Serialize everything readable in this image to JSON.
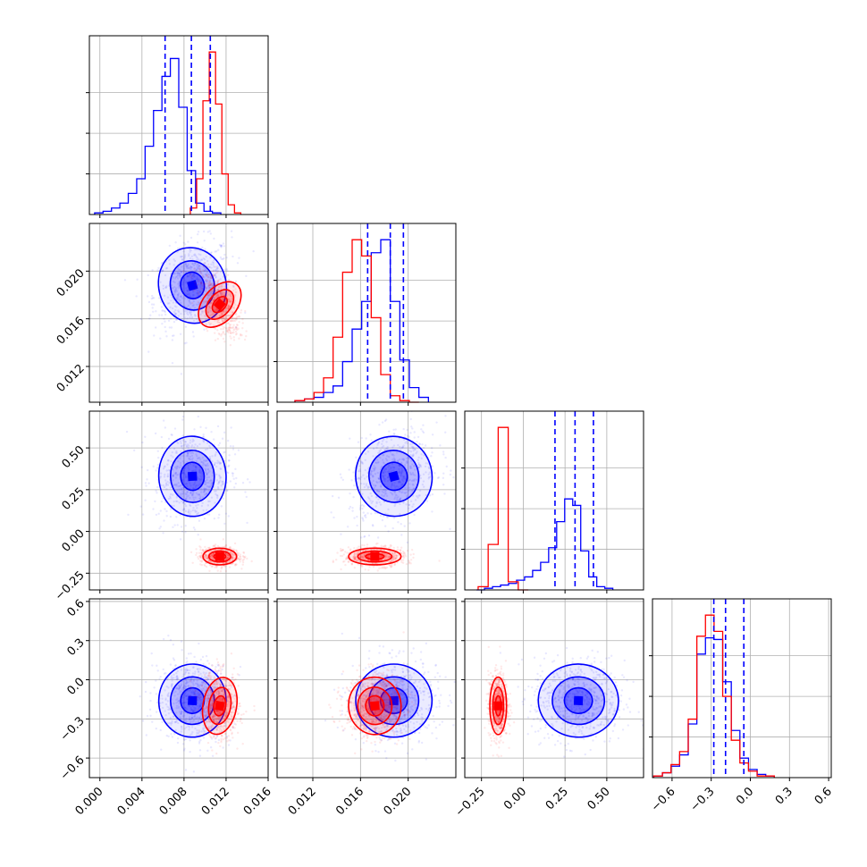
{
  "chart_data": {
    "type": "corner",
    "grid": true,
    "parameters": 4,
    "colors": {
      "blue": "#0000ff",
      "red": "#ff0000",
      "grid": "#b0b0b0"
    },
    "axes": [
      {
        "range": [
          -0.001,
          0.016
        ],
        "ticks": [
          0.0,
          0.004,
          0.008,
          0.012,
          0.016
        ],
        "tick_labels": [
          "0.000",
          "0.004",
          "0.008",
          "0.012",
          "0.016"
        ]
      },
      {
        "range": [
          0.009,
          0.024
        ],
        "ticks": [
          0.012,
          0.016,
          0.02
        ],
        "tick_labels": [
          "0.012",
          "0.016",
          "0.020"
        ]
      },
      {
        "range": [
          -0.35,
          0.72
        ],
        "ticks": [
          -0.25,
          0.0,
          0.25,
          0.5
        ],
        "tick_labels": [
          "−0.25",
          "0.00",
          "0.25",
          "0.50"
        ]
      },
      {
        "range": [
          -0.75,
          0.62
        ],
        "ticks": [
          -0.6,
          -0.3,
          0.0,
          0.3,
          0.6
        ],
        "tick_labels": [
          "−0.6",
          "−0.3",
          "0.0",
          "0.3",
          "0.6"
        ]
      }
    ],
    "series": [
      {
        "color": "blue",
        "quantiles": [
          [
            0.0062,
            0.0087,
            0.0105
          ],
          [
            0.0166,
            0.0185,
            0.0196
          ],
          [
            0.19,
            0.31,
            0.42
          ],
          [
            -0.28,
            -0.19,
            -0.05
          ]
        ],
        "centers": [
          0.0088,
          0.0188,
          0.33,
          -0.16
        ],
        "sigmas": [
          0.0016,
          0.0016,
          0.12,
          0.14
        ],
        "histograms": [
          {
            "start": -0.0005,
            "width": 0.0008,
            "counts": [
              1,
              2,
              4,
              7,
              13,
              22,
              42,
              64,
              85,
              96,
              66,
              27,
              7,
              2,
              1
            ]
          },
          {
            "start": 0.0105,
            "width": 0.0008,
            "counts": [
              1,
              2,
              3,
              6,
              10,
              25,
              45,
              62,
              92,
              100,
              62,
              26,
              9,
              3
            ]
          },
          {
            "start": -0.28,
            "width": 0.048,
            "counts": [
              0,
              1,
              2,
              3,
              4,
              6,
              8,
              12,
              17,
              26,
              42,
              56,
              52,
              24,
              8,
              2,
              1
            ]
          },
          {
            "start": -0.74,
            "width": 0.066,
            "counts": [
              1,
              3,
              7,
              14,
              33,
              76,
              86,
              85,
              59,
              29,
              12,
              5,
              2,
              1
            ]
          }
        ]
      },
      {
        "color": "red",
        "centers": [
          0.0114,
          0.0172,
          -0.15,
          -0.2
        ],
        "sigmas": [
          0.0008,
          0.0011,
          0.025,
          0.11
        ],
        "histograms": [
          {
            "start": 0.0086,
            "width": 0.0006,
            "counts": [
              4,
              22,
              70,
              100,
              68,
              25,
              6,
              1
            ]
          },
          {
            "start": 0.0105,
            "width": 0.0008,
            "counts": [
              1,
              2,
              6,
              15,
              40,
              80,
              100,
              90,
              52,
              17,
              4,
              1,
              0
            ]
          },
          {
            "start": -0.27,
            "width": 0.06,
            "counts": [
              2,
              28,
              100,
              5,
              0
            ]
          },
          {
            "start": -0.74,
            "width": 0.066,
            "counts": [
              1,
              3,
              8,
              16,
              36,
              87,
              100,
              90,
              50,
              23,
              9,
              4,
              1,
              1
            ]
          }
        ]
      }
    ]
  }
}
